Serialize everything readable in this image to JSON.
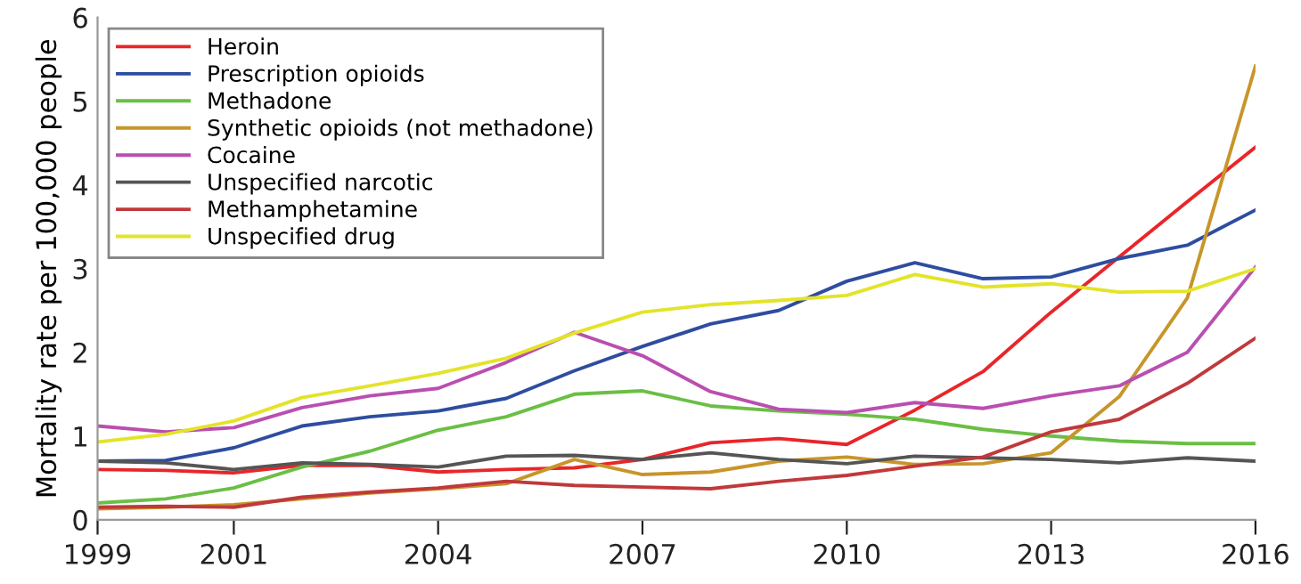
{
  "chart_data": {
    "type": "line",
    "ylabel": "Mortality rate per 100,000 people",
    "x": [
      1999,
      2000,
      2001,
      2002,
      2003,
      2004,
      2005,
      2006,
      2007,
      2008,
      2009,
      2010,
      2011,
      2012,
      2013,
      2014,
      2015,
      2016
    ],
    "xlim": [
      1999,
      2016
    ],
    "xticks": [
      1999,
      2001,
      2004,
      2007,
      2010,
      2013,
      2016
    ],
    "ylim": [
      0,
      6
    ],
    "yticks": [
      0,
      1,
      2,
      3,
      4,
      5,
      6
    ],
    "grid": false,
    "legend": "top left",
    "marker": "none",
    "line_style": "solid",
    "series": [
      {
        "name": "Heroin",
        "color": "#e8262a",
        "values": [
          0.6,
          0.59,
          0.56,
          0.65,
          0.65,
          0.57,
          0.6,
          0.62,
          0.72,
          0.92,
          0.97,
          0.9,
          1.31,
          1.77,
          2.48,
          3.14,
          3.8,
          4.45
        ]
      },
      {
        "name": "Prescription opioids",
        "color": "#2e4da0",
        "values": [
          0.7,
          0.71,
          0.86,
          1.12,
          1.23,
          1.3,
          1.45,
          1.78,
          2.07,
          2.34,
          2.5,
          2.85,
          3.07,
          2.88,
          2.9,
          3.12,
          3.28,
          3.7
        ]
      },
      {
        "name": "Methadone",
        "color": "#6abf45",
        "values": [
          0.2,
          0.25,
          0.38,
          0.63,
          0.82,
          1.07,
          1.23,
          1.5,
          1.54,
          1.36,
          1.3,
          1.26,
          1.2,
          1.08,
          1.0,
          0.94,
          0.91,
          0.91
        ]
      },
      {
        "name": "Synthetic opioids (not methadone)",
        "color": "#c8952a",
        "values": [
          0.13,
          0.15,
          0.18,
          0.25,
          0.32,
          0.37,
          0.43,
          0.72,
          0.54,
          0.57,
          0.7,
          0.75,
          0.66,
          0.67,
          0.8,
          1.47,
          2.65,
          5.42
        ]
      },
      {
        "name": "Cocaine",
        "color": "#b94fb0",
        "values": [
          1.12,
          1.05,
          1.1,
          1.34,
          1.48,
          1.57,
          1.88,
          2.24,
          1.96,
          1.53,
          1.32,
          1.28,
          1.4,
          1.33,
          1.48,
          1.6,
          2.0,
          3.02
        ]
      },
      {
        "name": "Unspecified narcotic",
        "color": "#555555",
        "values": [
          0.7,
          0.68,
          0.6,
          0.68,
          0.66,
          0.63,
          0.76,
          0.77,
          0.72,
          0.8,
          0.72,
          0.67,
          0.76,
          0.74,
          0.72,
          0.68,
          0.74,
          0.7
        ]
      },
      {
        "name": "Methamphetamine",
        "color": "#c0393b",
        "values": [
          0.15,
          0.16,
          0.15,
          0.27,
          0.33,
          0.38,
          0.46,
          0.41,
          0.39,
          0.37,
          0.46,
          0.53,
          0.64,
          0.75,
          1.05,
          1.2,
          1.63,
          2.17
        ]
      },
      {
        "name": "Unspecified drug",
        "color": "#e3e32a",
        "values": [
          0.93,
          1.02,
          1.18,
          1.46,
          1.6,
          1.75,
          1.93,
          2.23,
          2.48,
          2.57,
          2.62,
          2.68,
          2.93,
          2.78,
          2.82,
          2.72,
          2.73,
          3.0
        ]
      }
    ]
  }
}
